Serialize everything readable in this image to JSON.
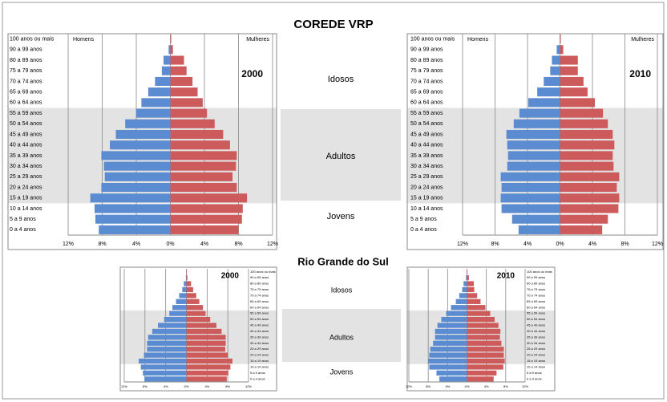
{
  "title": "COREDE VRP",
  "subtitle": "Rio Grande do Sul",
  "groups": {
    "top": [
      "Idosos",
      "Adultos",
      "Jovens"
    ],
    "bottom": [
      "Idosos",
      "Adultos",
      "Jovens"
    ]
  },
  "chart_data": [
    {
      "type": "pyramid",
      "annotation": "2000",
      "categories": [
        "100 anos ou mais",
        "90 a 99 anos",
        "80 a 89 anos",
        "75 a 79 anos",
        "70 a 74 anos",
        "65 a 69 anos",
        "60 a 64 anos",
        "55 a 59 anos",
        "50 a 54 anos",
        "45 a 49 anos",
        "40 a 44 anos",
        "35 a 39 anos",
        "30 a 34 anos",
        "25 a 29 anos",
        "20 a 24 anos",
        "15 a 19 anos",
        "10 a 14 anos",
        "5 a 9 anos",
        "0 a 4 anos"
      ],
      "series": [
        {
          "name": "Homens",
          "color": "#5b8bd0",
          "values": [
            0,
            0.2,
            0.8,
            1.0,
            1.8,
            2.6,
            3.4,
            4.0,
            5.3,
            6.4,
            7.1,
            8.1,
            7.8,
            7.7,
            8.1,
            9.4,
            8.9,
            8.8,
            8.4
          ]
        },
        {
          "name": "Mulheres",
          "color": "#cd5b5b",
          "values": [
            0.1,
            0.3,
            1.6,
            1.9,
            2.6,
            3.2,
            3.8,
            4.3,
            5.2,
            6.2,
            7.0,
            7.8,
            7.7,
            7.3,
            7.8,
            9.0,
            8.5,
            8.4,
            8.0
          ]
        }
      ],
      "xlim": [
        -12,
        12
      ],
      "xticks": [
        {
          "value": -12,
          "label": "12%"
        },
        {
          "value": -8,
          "label": "8%"
        },
        {
          "value": -4,
          "label": "4%"
        },
        {
          "value": 0,
          "label": "0%"
        },
        {
          "value": 4,
          "label": "4%"
        },
        {
          "value": 8,
          "label": "8%"
        },
        {
          "value": 12,
          "label": "12%"
        }
      ]
    },
    {
      "type": "pyramid",
      "annotation": "2010",
      "categories": [
        "100 anos ou mais",
        "90 a 99 anos",
        "80 a 89 anos",
        "75 a 79 anos",
        "70 a 74 anos",
        "65 a 69 anos",
        "60 a 64 anos",
        "55 a 59 anos",
        "50 a 54 anos",
        "45 a 49 anos",
        "40 a 44 anos",
        "35 a 39 anos",
        "30 a 34 anos",
        "25 a 29 anos",
        "20 a 24 anos",
        "15 a 19 anos",
        "10 a 14 anos",
        "5 a 9 anos",
        "0 a 4 anos"
      ],
      "series": [
        {
          "name": "Homens",
          "color": "#5b8bd0",
          "values": [
            0,
            0.4,
            1.0,
            1.2,
            2.0,
            2.8,
            3.9,
            5.0,
            5.7,
            6.6,
            6.5,
            6.4,
            6.5,
            7.3,
            7.2,
            7.3,
            7.2,
            5.9,
            5.1
          ]
        },
        {
          "name": "Mulheres",
          "color": "#cd5b5b",
          "values": [
            0.1,
            0.4,
            2.2,
            2.2,
            2.9,
            3.4,
            4.3,
            5.3,
            5.9,
            6.5,
            6.7,
            6.5,
            6.6,
            7.3,
            7.0,
            7.3,
            7.2,
            5.9,
            5.2
          ]
        }
      ],
      "xlim": [
        -12,
        12
      ],
      "xticks": [
        {
          "value": -12,
          "label": "12%"
        },
        {
          "value": -8,
          "label": "8%"
        },
        {
          "value": -4,
          "label": "4%"
        },
        {
          "value": 0,
          "label": "0%"
        },
        {
          "value": 4,
          "label": "4%"
        },
        {
          "value": 8,
          "label": "8%"
        },
        {
          "value": 12,
          "label": "12%"
        }
      ]
    },
    {
      "type": "pyramid",
      "annotation": "2000",
      "categories": [
        "100 anos ou mais",
        "90 a 99 anos",
        "80 a 89 anos",
        "75 a 79 anos",
        "70 a 74 anos",
        "65 a 69 anos",
        "60 a 64 anos",
        "55 a 59 anos",
        "50 a 54 anos",
        "45 a 49 anos",
        "40 a 44 anos",
        "35 a 39 anos",
        "30 a 34 anos",
        "25 a 29 anos",
        "20 a 24 anos",
        "15 a 19 anos",
        "10 a 14 anos",
        "5 a 9 anos",
        "0 a 4 anos"
      ],
      "series": [
        {
          "color": "#5b8bd0",
          "values": [
            0,
            0.1,
            0.5,
            0.8,
            1.4,
            2.0,
            2.7,
            3.3,
            4.3,
            5.5,
            6.6,
            7.4,
            7.6,
            7.6,
            8.2,
            9.2,
            8.8,
            8.4,
            8.1
          ]
        },
        {
          "color": "#cd5b5b",
          "values": [
            0.1,
            0.2,
            0.9,
            1.3,
            1.9,
            2.5,
            3.2,
            3.7,
            4.6,
            5.8,
            6.8,
            7.6,
            7.6,
            7.5,
            8.0,
            8.9,
            8.5,
            8.1,
            7.8
          ]
        }
      ],
      "xlim": [
        -12,
        12
      ],
      "xticks": [
        {
          "value": -12,
          "label": "12%"
        },
        {
          "value": -8,
          "label": "8%"
        },
        {
          "value": -4,
          "label": "4%"
        },
        {
          "value": 0,
          "label": "0%"
        },
        {
          "value": 4,
          "label": "4%"
        },
        {
          "value": 8,
          "label": "8%"
        },
        {
          "value": 12,
          "label": "12%"
        }
      ]
    },
    {
      "type": "pyramid",
      "annotation": "2010",
      "categories": [
        "100 anos ou mais",
        "90 a 99 anos",
        "80 a 89 anos",
        "75 a 79 anos",
        "70 a 74 anos",
        "65 a 69 anos",
        "60 a 64 anos",
        "55 a 59 anos",
        "50 a 54 anos",
        "45 a 49 anos",
        "40 a 44 anos",
        "35 a 39 anos",
        "30 a 34 anos",
        "25 a 29 anos",
        "20 a 24 anos",
        "15 a 19 anos",
        "10 a 14 anos",
        "5 a 9 anos",
        "0 a 4 anos"
      ],
      "series": [
        {
          "color": "#5b8bd0",
          "values": [
            0,
            0.2,
            0.7,
            1.0,
            1.6,
            2.3,
            3.3,
            4.3,
            5.3,
            6.1,
            6.6,
            6.6,
            7.0,
            7.6,
            7.8,
            8.0,
            7.8,
            6.3,
            5.7
          ]
        },
        {
          "color": "#cd5b5b",
          "values": [
            0.1,
            0.4,
            1.4,
            1.5,
            2.1,
            2.8,
            3.8,
            4.8,
            5.7,
            6.5,
            6.9,
            6.8,
            7.1,
            7.6,
            7.6,
            7.8,
            7.5,
            6.1,
            5.5
          ]
        }
      ],
      "xlim": [
        -12,
        12
      ],
      "xticks": [
        {
          "value": -12,
          "label": "12%"
        },
        {
          "value": -8,
          "label": "8%"
        },
        {
          "value": -4,
          "label": "4%"
        },
        {
          "value": 0,
          "label": "0%"
        },
        {
          "value": 4,
          "label": "4%"
        },
        {
          "value": 8,
          "label": "8%"
        },
        {
          "value": 12,
          "label": "12%"
        }
      ]
    }
  ]
}
